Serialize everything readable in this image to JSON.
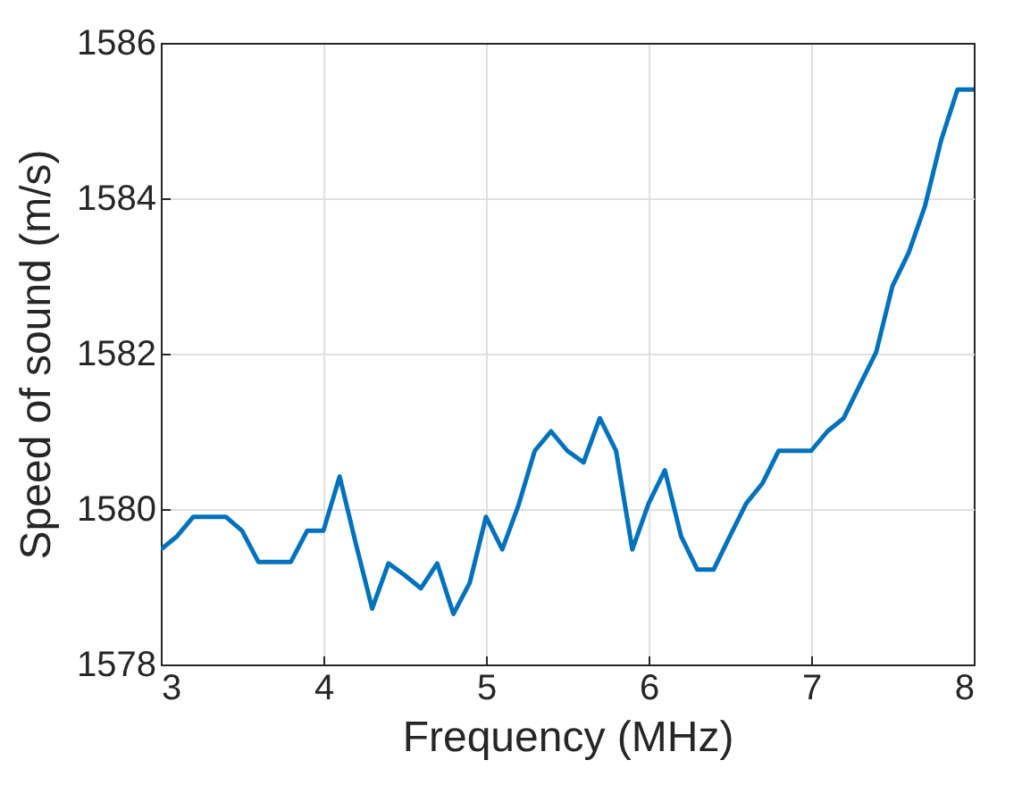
{
  "chart_data": {
    "type": "line",
    "xlabel": "Frequency (MHz)",
    "ylabel": "Speed of sound (m/s)",
    "x": [
      3,
      3.1,
      3.2,
      3.3,
      3.4,
      3.5,
      3.6,
      3.7,
      3.8,
      3.9,
      4,
      4.1,
      4.2,
      4.3,
      4.4,
      4.5,
      4.6,
      4.7,
      4.8,
      4.9,
      5,
      5.1,
      5.2,
      5.3,
      5.4,
      5.5,
      5.6,
      5.7,
      5.8,
      5.9,
      6,
      6.1,
      6.2,
      6.3,
      6.4,
      6.5,
      6.6,
      6.7,
      6.8,
      6.9,
      7,
      7.1,
      7.2,
      7.3,
      7.4,
      7.5,
      7.6,
      7.7,
      7.8,
      7.9,
      8
    ],
    "series": [
      {
        "color": "#0072bd",
        "values": [
          1579.48,
          1579.65,
          1579.9,
          1579.9,
          1579.9,
          1579.72,
          1579.32,
          1579.32,
          1579.32,
          1579.72,
          1579.72,
          1580.42,
          1579.55,
          1578.72,
          1579.3,
          1579.15,
          1578.98,
          1579.3,
          1578.65,
          1579.05,
          1579.9,
          1579.48,
          1580.05,
          1580.75,
          1581.0,
          1580.75,
          1580.6,
          1581.17,
          1580.75,
          1579.48,
          1580.07,
          1580.5,
          1579.65,
          1579.22,
          1579.22,
          1579.65,
          1580.07,
          1580.33,
          1580.75,
          1580.75,
          1580.75,
          1581.0,
          1581.17,
          1581.6,
          1582.02,
          1582.87,
          1583.3,
          1583.9,
          1584.75,
          1585.4,
          1585.4
        ]
      }
    ],
    "xlim": [
      3,
      8
    ],
    "xticks": [
      3,
      4,
      5,
      6,
      7,
      8
    ],
    "ylim": [
      1578,
      1586
    ],
    "yticks": [
      1578,
      1580,
      1582,
      1584,
      1586
    ],
    "grid": true,
    "line_style": "solid",
    "marker": "none",
    "legend": false
  }
}
